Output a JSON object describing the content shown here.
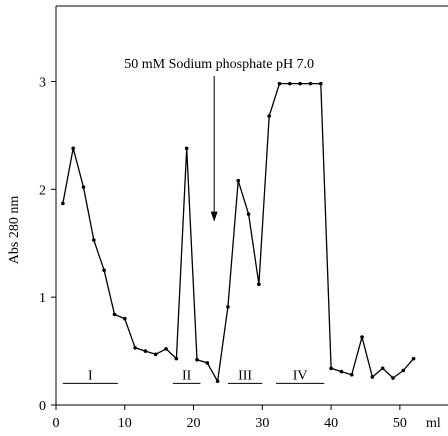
{
  "chart_data": {
    "type": "line",
    "title": "",
    "xlabel": "ml",
    "ylabel": "Abs 280 nm",
    "xlim": [
      0,
      57
    ],
    "ylim": [
      0,
      3.7
    ],
    "x_ticks": [
      0,
      10,
      20,
      30,
      40,
      50
    ],
    "y_ticks": [
      0,
      1,
      2,
      3
    ],
    "grid": false,
    "legend": "none",
    "series": [
      {
        "color": "#000000",
        "x": [
          1,
          2.5,
          4,
          5.5,
          7,
          8.5,
          10,
          11.5,
          13,
          14.5,
          16,
          17.5,
          19,
          20.5,
          22,
          23.5,
          25,
          26.5,
          28,
          29.5,
          31,
          32.5,
          34,
          35.5,
          37,
          38.5,
          40,
          41.5,
          43,
          44.5,
          46,
          47.5,
          49,
          50.5,
          52
        ],
        "y": [
          1.87,
          2.38,
          2.02,
          1.53,
          1.25,
          0.84,
          0.8,
          0.53,
          0.5,
          0.47,
          0.52,
          0.43,
          2.38,
          0.42,
          0.39,
          0.22,
          0.91,
          2.08,
          1.77,
          1.12,
          2.68,
          2.98,
          2.98,
          2.98,
          2.98,
          2.98,
          0.34,
          0.31,
          0.28,
          0.63,
          0.26,
          0.34,
          0.25,
          0.32,
          0.43
        ]
      }
    ],
    "annotations": [
      {
        "text": "50 mM Sodium phosphate pH 7.0",
        "arrow_x": 23,
        "arrow_y_from": 3.2,
        "arrow_y_to": 1.7
      }
    ],
    "regions": [
      {
        "label": "I",
        "x_start": 1,
        "x_end": 9,
        "y": 0.2
      },
      {
        "label": "II",
        "x_start": 17,
        "x_end": 21,
        "y": 0.2
      },
      {
        "label": "III",
        "x_start": 25,
        "x_end": 30,
        "y": 0.2
      },
      {
        "label": "IV",
        "x_start": 32,
        "x_end": 39,
        "y": 0.2
      }
    ]
  }
}
